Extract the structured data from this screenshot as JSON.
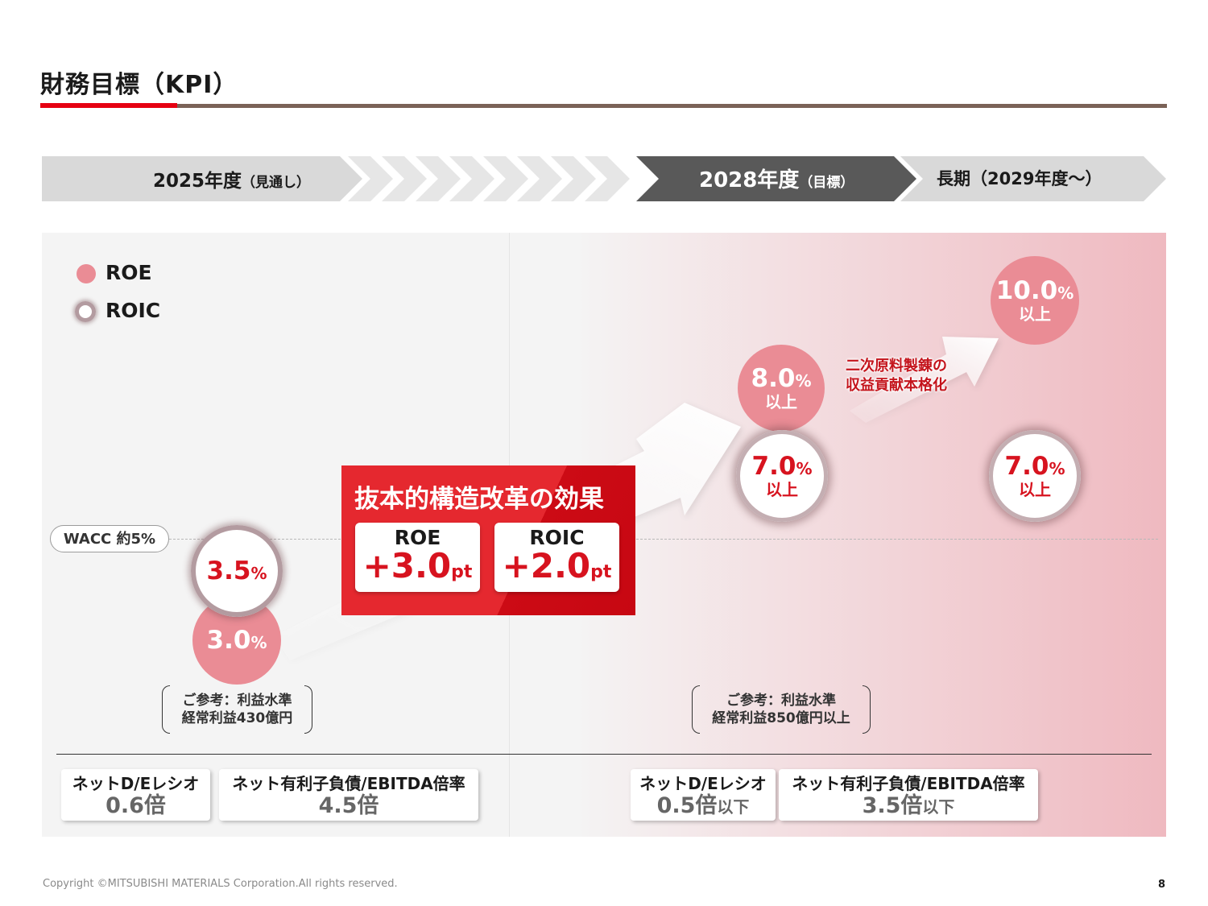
{
  "title": "財務目標（KPI）",
  "timeline": {
    "fy2025": {
      "label": "2025年度",
      "note": "（見通し）"
    },
    "fy2028": {
      "label": "2028年度",
      "note": "（目標）"
    },
    "long_term": {
      "label": "長期（2029年度～）"
    }
  },
  "legend": {
    "roe": "ROE",
    "roic": "ROIC"
  },
  "wacc": "WACC 約5%",
  "fy2025": {
    "roic": {
      "value": "3.5",
      "unit": "%"
    },
    "roe": {
      "value": "3.0",
      "unit": "%"
    },
    "reference": {
      "line1": "ご参考：利益水準",
      "line2": "経常利益430億円"
    },
    "metrics": [
      {
        "label": "ネットD/Eレシオ",
        "value": "0.6倍",
        "suffix": ""
      },
      {
        "label": "ネット有利子負債/EBITDA倍率",
        "value": "4.5倍",
        "suffix": ""
      }
    ]
  },
  "effect": {
    "title": "抜本的構造改革の効果",
    "roe": {
      "label": "ROE",
      "value": "+3.0",
      "unit": "pt"
    },
    "roic": {
      "label": "ROIC",
      "value": "+2.0",
      "unit": "pt"
    }
  },
  "fy2028": {
    "roe": {
      "value": "8.0",
      "unit": "%",
      "sub": "以上"
    },
    "roic": {
      "value": "7.0",
      "unit": "%",
      "sub": "以上"
    },
    "reference": {
      "line1": "ご参考：利益水準",
      "line2": "経常利益850億円以上"
    },
    "metrics": [
      {
        "label": "ネットD/Eレシオ",
        "value": "0.5倍",
        "suffix": "以下"
      },
      {
        "label": "ネット有利子負債/EBITDA倍率",
        "value": "3.5倍",
        "suffix": "以下"
      }
    ]
  },
  "long_term": {
    "roe": {
      "value": "10.0",
      "unit": "%",
      "sub": "以上"
    },
    "roic": {
      "value": "7.0",
      "unit": "%",
      "sub": "以上"
    },
    "note": {
      "line1": "二次原料製錬の",
      "line2": "収益貢献本格化"
    }
  },
  "footer": {
    "copyright": "Copyright ©MITSUBISHI MATERIALS Corporation.All rights reserved.",
    "page": "8"
  },
  "colors": {
    "brand_red": "#e60012",
    "accent_red": "#d7131f",
    "roe_pink": "#ea8c95",
    "dark_gray": "#595959",
    "light_gray": "#d9d9d9"
  }
}
